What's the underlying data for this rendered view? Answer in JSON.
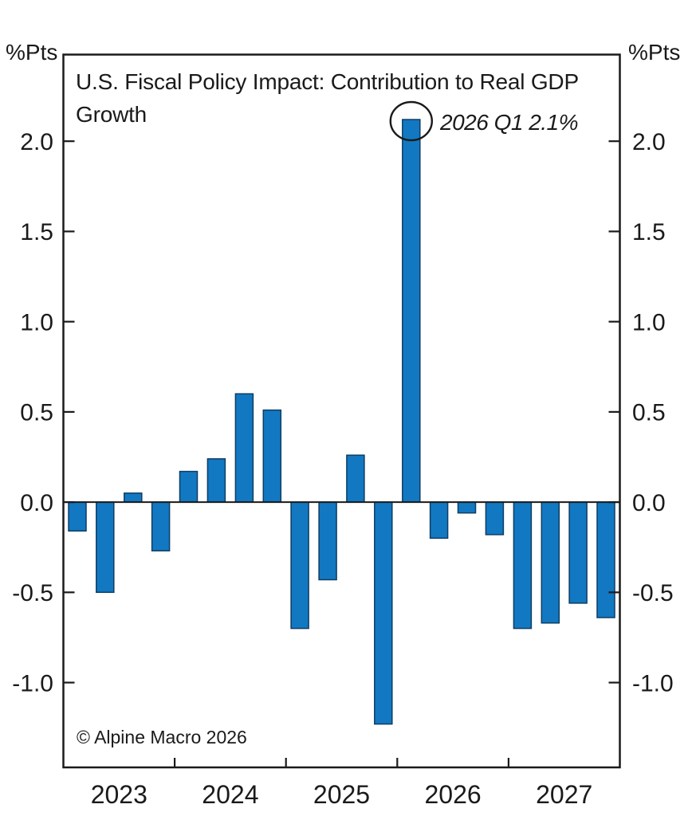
{
  "chart_data": {
    "type": "bar",
    "title": "U.S. Fiscal Policy Impact: Contribution to Real GDP Growth",
    "unit_label_left": "%Pts",
    "unit_label_right": "%Pts",
    "source_note": "© Alpine Macro 2026",
    "categories": [
      "2023 Q1",
      "2023 Q2",
      "2023 Q3",
      "2023 Q4",
      "2024 Q1",
      "2024 Q2",
      "2024 Q3",
      "2024 Q4",
      "2025 Q1",
      "2025 Q2",
      "2025 Q3",
      "2025 Q4",
      "2026 Q1",
      "2026 Q2",
      "2026 Q3",
      "2026 Q4",
      "2027 Q1",
      "2027 Q2",
      "2027 Q3",
      "2027 Q4"
    ],
    "values": [
      -0.16,
      -0.5,
      0.05,
      -0.27,
      0.17,
      0.24,
      0.6,
      0.51,
      -0.7,
      -0.43,
      0.26,
      -1.23,
      2.12,
      -0.2,
      -0.06,
      -0.18,
      -0.7,
      -0.67,
      -0.56,
      -0.64
    ],
    "x_tick_labels": [
      "2023",
      "2024",
      "2025",
      "2026",
      "2027"
    ],
    "y_tick_values": [
      2.0,
      1.5,
      1.0,
      0.5,
      0.0,
      -0.5,
      -1.0
    ],
    "y_tick_labels": [
      "2.0",
      "1.5",
      "1.0",
      "0.5",
      "0.0",
      "-0.5",
      "-1.0"
    ],
    "ylim": [
      -1.47,
      2.48
    ],
    "grid": false,
    "legend": null,
    "annotation": {
      "text": "2026 Q1 2.1%",
      "target_category": "2026 Q1",
      "target_value": 2.12,
      "marker": "circle-outline"
    },
    "colors": {
      "bar_fill": "#1278c2",
      "bar_edge": "#0e3d63",
      "axis": "#1a1a1a",
      "text": "#1a1a1a"
    }
  }
}
